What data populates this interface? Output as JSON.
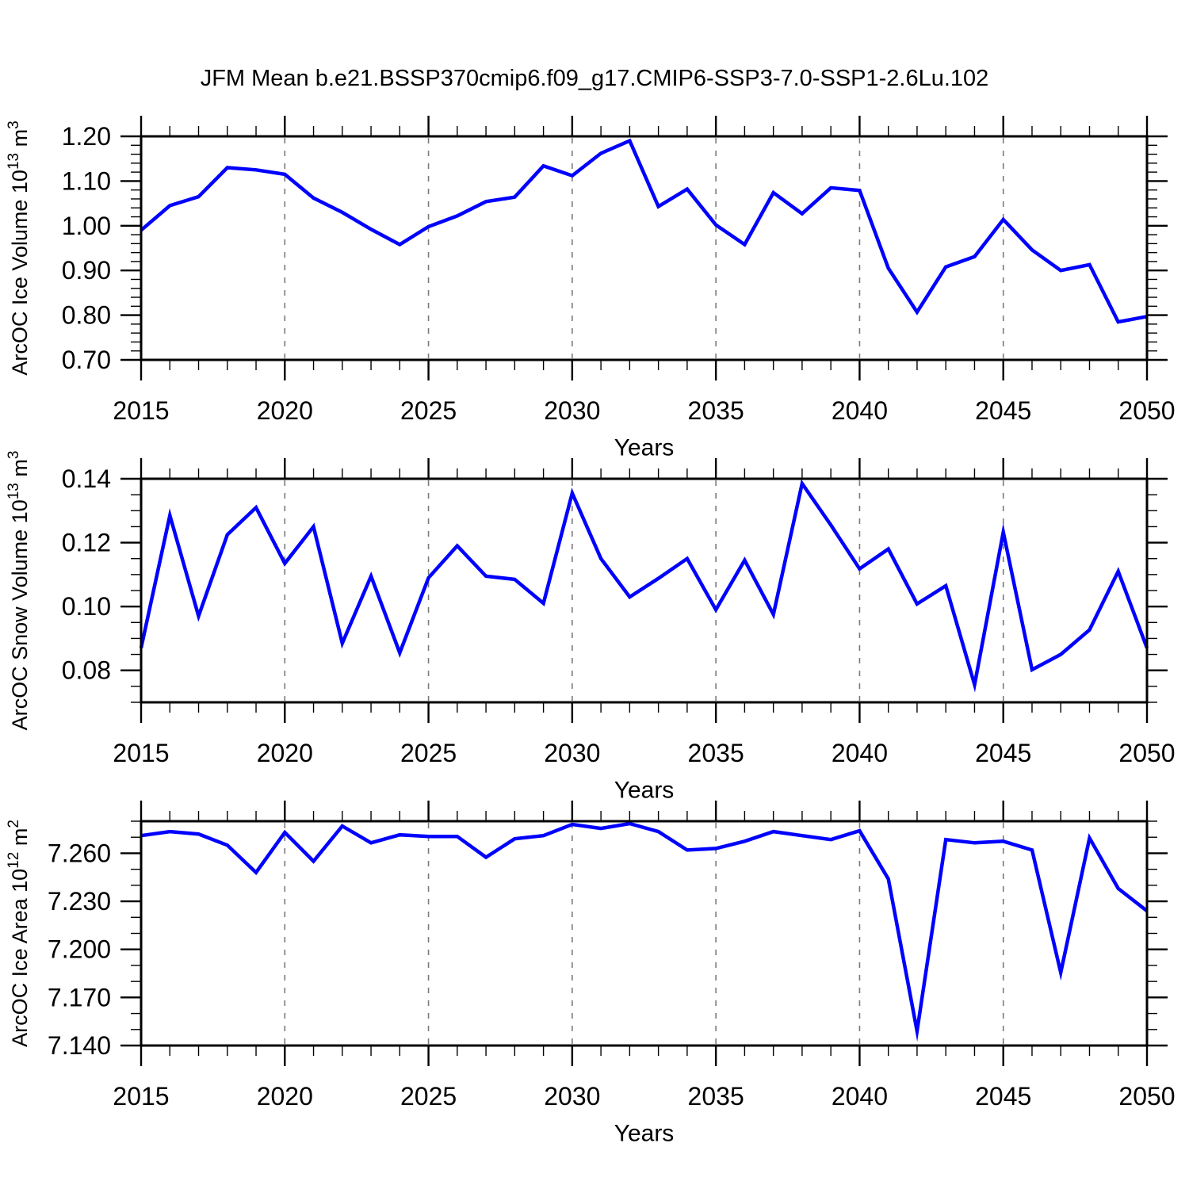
{
  "title": "JFM Mean b.e21.BSSP370cmip6.f09_g17.CMIP6-SSP3-7.0-SSP1-2.6Lu.102",
  "background_color": "#ffffff",
  "axis_color": "#000000",
  "gridline_color": "#7a7a7a",
  "line_color": "#0000ff",
  "chart_data": [
    {
      "type": "line",
      "name": "ice-volume",
      "ylabel": "ArcOC Ice Volume 10^13 m^3",
      "ylabel_parts": [
        {
          "t": "ArcOC Ice Volume 10"
        },
        {
          "t": "13",
          "sup": true
        },
        {
          "t": " m"
        },
        {
          "t": "3",
          "sup": true
        }
      ],
      "xlabel": "Years",
      "x": [
        2015,
        2016,
        2017,
        2018,
        2019,
        2020,
        2021,
        2022,
        2023,
        2024,
        2025,
        2026,
        2027,
        2028,
        2029,
        2030,
        2031,
        2032,
        2033,
        2034,
        2035,
        2036,
        2037,
        2038,
        2039,
        2040,
        2041,
        2042,
        2043,
        2044,
        2045,
        2046,
        2047,
        2048,
        2049,
        2050
      ],
      "values": [
        0.99,
        1.045,
        1.065,
        1.13,
        1.125,
        1.115,
        1.062,
        1.03,
        0.992,
        0.958,
        0.998,
        1.022,
        1.054,
        1.064,
        1.134,
        1.112,
        1.162,
        1.19,
        1.043,
        1.082,
        1.002,
        0.958,
        1.074,
        1.027,
        1.085,
        1.079,
        0.905,
        0.807,
        0.908,
        0.931,
        1.014,
        0.946,
        0.9,
        0.913,
        0.785,
        0.797
      ],
      "ylim": [
        0.7,
        1.2
      ],
      "yticks": [
        1.2,
        1.1,
        1.0,
        0.9,
        0.8,
        0.7
      ],
      "ytick_labels": [
        "1.20",
        "1.10",
        "1.00",
        "0.90",
        "0.80",
        "0.70"
      ],
      "y_minor_step": 0.02,
      "xticks": [
        2015,
        2020,
        2025,
        2030,
        2035,
        2040,
        2045,
        2050
      ],
      "xtick_labels": [
        "2015",
        "2020",
        "2025",
        "2030",
        "2035",
        "2040",
        "2045",
        "2050"
      ],
      "x_minor_step": 1,
      "grid_years": [
        2020,
        2025,
        2030,
        2035,
        2040,
        2045
      ],
      "grid_style": "vertical-dashed",
      "line_color": "#0000ff"
    },
    {
      "type": "line",
      "name": "snow-volume",
      "ylabel": "ArcOC Snow Volume 10^13 m^3",
      "ylabel_parts": [
        {
          "t": "ArcOC Snow Volume 10"
        },
        {
          "t": "13",
          "sup": true
        },
        {
          "t": " m"
        },
        {
          "t": "3",
          "sup": true
        }
      ],
      "xlabel": "Years",
      "x": [
        2015,
        2016,
        2017,
        2018,
        2019,
        2020,
        2021,
        2022,
        2023,
        2024,
        2025,
        2026,
        2027,
        2028,
        2029,
        2030,
        2031,
        2032,
        2033,
        2034,
        2035,
        2036,
        2037,
        2038,
        2039,
        2040,
        2041,
        2042,
        2043,
        2044,
        2045,
        2046,
        2047,
        2048,
        2049,
        2050
      ],
      "values": [
        0.087,
        0.1285,
        0.097,
        0.1225,
        0.131,
        0.1135,
        0.125,
        0.0885,
        0.1095,
        0.0855,
        0.109,
        0.119,
        0.1095,
        0.1085,
        0.101,
        0.1355,
        0.115,
        0.103,
        0.1088,
        0.115,
        0.099,
        0.1145,
        0.0975,
        0.1385,
        0.1255,
        0.1118,
        0.118,
        0.1008,
        0.1065,
        0.0755,
        0.1233,
        0.0802,
        0.085,
        0.0927,
        0.111,
        0.087
      ],
      "ylim": [
        0.07,
        0.14
      ],
      "yticks": [
        0.14,
        0.12,
        0.1,
        0.08
      ],
      "ytick_labels": [
        "0.14",
        "0.12",
        "0.10",
        "0.08"
      ],
      "y_minor_step": 0.005,
      "xticks": [
        2015,
        2020,
        2025,
        2030,
        2035,
        2040,
        2045,
        2050
      ],
      "xtick_labels": [
        "2015",
        "2020",
        "2025",
        "2030",
        "2035",
        "2040",
        "2045",
        "2050"
      ],
      "x_minor_step": 1,
      "grid_years": [
        2020,
        2025,
        2030,
        2035,
        2040,
        2045
      ],
      "grid_style": "vertical-dashed",
      "line_color": "#0000ff"
    },
    {
      "type": "line",
      "name": "ice-area",
      "ylabel": "ArcOC Ice Area 10^12 m^2",
      "ylabel_parts": [
        {
          "t": "ArcOC Ice Area 10"
        },
        {
          "t": "12",
          "sup": true
        },
        {
          "t": " m"
        },
        {
          "t": "2",
          "sup": true
        }
      ],
      "xlabel": "Years",
      "x": [
        2015,
        2016,
        2017,
        2018,
        2019,
        2020,
        2021,
        2022,
        2023,
        2024,
        2025,
        2026,
        2027,
        2028,
        2029,
        2030,
        2031,
        2032,
        2033,
        2034,
        2035,
        2036,
        2037,
        2038,
        2039,
        2040,
        2041,
        2042,
        2043,
        2044,
        2045,
        2046,
        2047,
        2048,
        2049,
        2050
      ],
      "values": [
        7.271,
        7.2735,
        7.272,
        7.265,
        7.248,
        7.273,
        7.255,
        7.277,
        7.2665,
        7.2715,
        7.2705,
        7.2705,
        7.2575,
        7.269,
        7.271,
        7.278,
        7.2755,
        7.2785,
        7.2735,
        7.262,
        7.263,
        7.2675,
        7.2735,
        7.271,
        7.2685,
        7.274,
        7.244,
        7.149,
        7.2685,
        7.2665,
        7.2675,
        7.262,
        7.1855,
        7.2695,
        7.238,
        7.224
      ],
      "ylim": [
        7.14,
        7.28
      ],
      "yticks": [
        7.26,
        7.23,
        7.2,
        7.17,
        7.14
      ],
      "ytick_labels": [
        "7.260",
        "7.230",
        "7.200",
        "7.170",
        "7.140"
      ],
      "y_minor_step": 0.01,
      "xticks": [
        2015,
        2020,
        2025,
        2030,
        2035,
        2040,
        2045,
        2050
      ],
      "xtick_labels": [
        "2015",
        "2020",
        "2025",
        "2030",
        "2035",
        "2040",
        "2045",
        "2050"
      ],
      "x_minor_step": 1,
      "grid_years": [
        2020,
        2025,
        2030,
        2035,
        2040,
        2045
      ],
      "grid_style": "vertical-dashed",
      "line_color": "#0000ff"
    }
  ]
}
